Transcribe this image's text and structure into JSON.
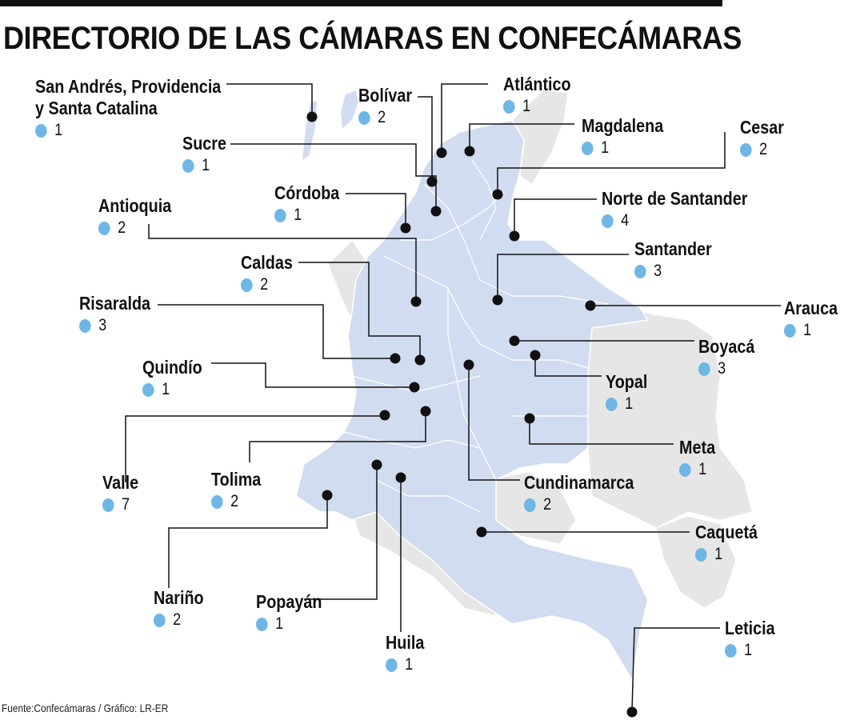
{
  "title": "DIRECTORIO DE LAS CÁMARAS EN CONFECÁMARAS",
  "source": "Fuente:Confecámaras / Gráfico: LR-ER",
  "colors": {
    "map_fill": "#d2dcf0",
    "neighbor_fill": "#e6e6e6",
    "bubble": "#6db7e6",
    "line": "#111111"
  },
  "regions": [
    {
      "name": "San Andrés, Providencia",
      "name2": "y Santa Catalina",
      "count": "1"
    },
    {
      "name": "Bolívar",
      "count": "2"
    },
    {
      "name": "Atlántico",
      "count": "1"
    },
    {
      "name": "Magdalena",
      "count": "1"
    },
    {
      "name": "Cesar",
      "count": "2"
    },
    {
      "name": "Sucre",
      "count": "1"
    },
    {
      "name": "Córdoba",
      "count": "1"
    },
    {
      "name": "Norte de Santander",
      "count": "4"
    },
    {
      "name": "Antioquia",
      "count": "2"
    },
    {
      "name": "Santander",
      "count": "3"
    },
    {
      "name": "Caldas",
      "count": "2"
    },
    {
      "name": "Arauca",
      "count": "1"
    },
    {
      "name": "Risaralda",
      "count": "3"
    },
    {
      "name": "Boyacá",
      "count": "3"
    },
    {
      "name": "Quindío",
      "count": "1"
    },
    {
      "name": "Yopal",
      "count": "1"
    },
    {
      "name": "Meta",
      "count": "1"
    },
    {
      "name": "Valle",
      "count": "7"
    },
    {
      "name": "Tolima",
      "count": "2"
    },
    {
      "name": "Cundinamarca",
      "count": "2"
    },
    {
      "name": "Caquetá",
      "count": "1"
    },
    {
      "name": "Nariño",
      "count": "2"
    },
    {
      "name": "Popayán",
      "count": "1"
    },
    {
      "name": "Huila",
      "count": "1"
    },
    {
      "name": "Leticia",
      "count": "1"
    }
  ]
}
